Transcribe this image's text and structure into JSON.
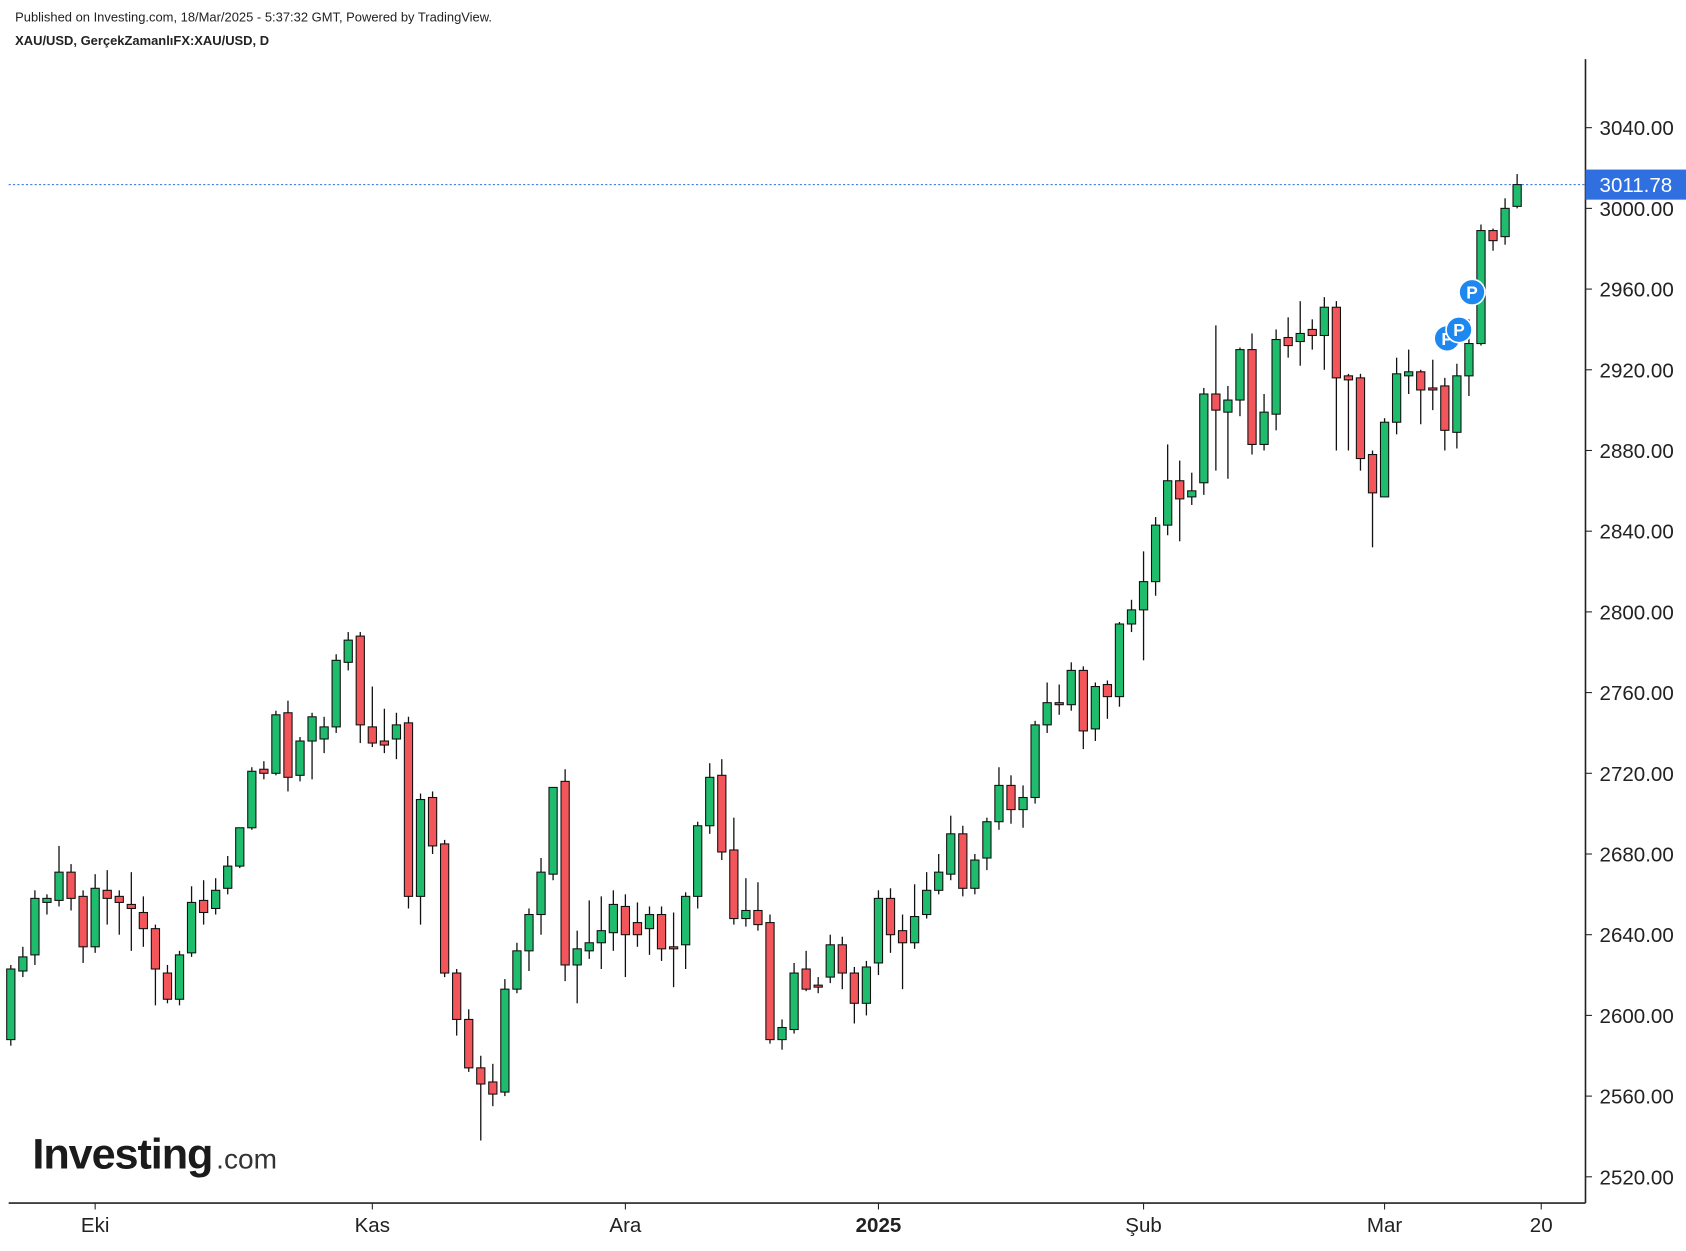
{
  "header": {
    "published": "Published on Investing.com, 18/Mar/2025 - 5:37:32 GMT, Powered by TradingView.",
    "symbol": "XAU/USD, GerçekZamanlıFX:XAU/USD, D"
  },
  "watermark": {
    "brand": "Investing",
    "suffix": ".com"
  },
  "chart_data": {
    "type": "candlestick",
    "categories": [
      null,
      null,
      null,
      null,
      null,
      null,
      null,
      "Eki",
      null,
      null,
      null,
      null,
      null,
      null,
      null,
      null,
      null,
      null,
      null,
      null,
      null,
      null,
      null,
      null,
      null,
      null,
      null,
      null,
      null,
      null,
      "Kas",
      null,
      null,
      null,
      null,
      null,
      null,
      null,
      null,
      null,
      null,
      null,
      null,
      null,
      null,
      null,
      null,
      null,
      null,
      null,
      null,
      "Ara",
      null,
      null,
      null,
      null,
      null,
      null,
      null,
      null,
      null,
      null,
      null,
      null,
      null,
      null,
      null,
      null,
      null,
      null,
      null,
      null,
      "2025",
      null,
      null,
      null,
      null,
      null,
      null,
      null,
      null,
      null,
      null,
      null,
      null,
      null,
      null,
      null,
      null,
      null,
      null,
      null,
      null,
      null,
      "Şub",
      null,
      null,
      null,
      null,
      null,
      null,
      null,
      null,
      null,
      null,
      null,
      null,
      null,
      null,
      null,
      null,
      null,
      null,
      null,
      "Mar",
      null,
      null,
      null,
      null,
      null,
      null,
      null,
      null,
      null,
      null,
      null,
      null,
      "20"
    ],
    "open": [
      2588,
      2622,
      2630,
      2656,
      2657,
      2671,
      2659,
      2634,
      2662,
      2659,
      2655,
      2651,
      2643,
      2621,
      2608,
      2631,
      2657,
      2653,
      2663,
      2674,
      2693,
      2722,
      2720,
      2750,
      2719,
      2736,
      2737,
      2743,
      2775,
      2788,
      2743,
      2736,
      2737,
      2745,
      2659,
      2708,
      2685,
      2621,
      2598,
      2574,
      2567,
      2562,
      2613,
      2632,
      2650,
      2670,
      2716,
      2625,
      2632,
      2636,
      2641,
      2654,
      2646,
      2643,
      2650,
      2634,
      2635,
      2659,
      2694,
      2719,
      2682,
      2648,
      2652,
      2646,
      2588,
      2593,
      2623,
      2615,
      2619,
      2635,
      2621,
      2606,
      2626,
      2658,
      2642,
      2636,
      2650,
      2662,
      2670,
      2690,
      2663,
      2678,
      2696,
      2714,
      2702,
      2708,
      2744,
      2755,
      2754,
      2771,
      2742,
      2764,
      2758,
      2794,
      2801,
      2815,
      2843,
      2865,
      2857,
      2864,
      2908,
      2899,
      2905,
      2930,
      2883,
      2898,
      2936,
      2934,
      2940,
      2937,
      2951,
      2917,
      2916,
      2878,
      2857,
      2894,
      2917,
      2919,
      2911,
      2912,
      2889,
      2917,
      2933,
      2989,
      2986,
      3001,
      null,
      null
    ],
    "high": [
      2625,
      2634,
      2662,
      2660,
      2684,
      2675,
      2662,
      2670,
      2672,
      2662,
      2671,
      2659,
      2645,
      2625,
      2632,
      2664,
      2667,
      2668,
      2679,
      2693,
      2723,
      2726,
      2751,
      2756,
      2738,
      2750,
      2748,
      2779,
      2790,
      2790,
      2763,
      2752,
      2750,
      2748,
      2710,
      2711,
      2687,
      2623,
      2603,
      2580,
      2576,
      2618,
      2636,
      2653,
      2678,
      2713,
      2722,
      2642,
      2657,
      2659,
      2662,
      2660,
      2656,
      2654,
      2654,
      2651,
      2661,
      2696,
      2725,
      2727,
      2698,
      2668,
      2666,
      2650,
      2598,
      2626,
      2632,
      2619,
      2640,
      2639,
      2624,
      2627,
      2662,
      2663,
      2650,
      2665,
      2671,
      2680,
      2699,
      2694,
      2680,
      2698,
      2723,
      2719,
      2714,
      2746,
      2765,
      2764,
      2775,
      2773,
      2765,
      2766,
      2795,
      2806,
      2830,
      2847,
      2883,
      2875,
      2869,
      2911,
      2942,
      2912,
      2931,
      2938,
      2908,
      2940,
      2946,
      2954,
      2945,
      2956,
      2954,
      2918,
      2918,
      2880,
      2896,
      2926,
      2930,
      2920,
      2925,
      2916,
      2923,
      2945,
      2992,
      2990,
      3005,
      3017,
      null,
      null
    ],
    "low": [
      2585,
      2619,
      2625,
      2650,
      2654,
      2652,
      2626,
      2631,
      2645,
      2640,
      2632,
      2634,
      2605,
      2606,
      2605,
      2629,
      2645,
      2650,
      2660,
      2673,
      2692,
      2717,
      2719,
      2711,
      2716,
      2717,
      2730,
      2740,
      2771,
      2735,
      2733,
      2730,
      2727,
      2653,
      2645,
      2680,
      2619,
      2590,
      2572,
      2538,
      2555,
      2560,
      2611,
      2622,
      2640,
      2667,
      2617,
      2606,
      2628,
      2623,
      2632,
      2619,
      2634,
      2630,
      2627,
      2614,
      2623,
      2653,
      2690,
      2677,
      2645,
      2644,
      2642,
      2586,
      2583,
      2591,
      2612,
      2611,
      2616,
      2613,
      2596,
      2600,
      2620,
      2631,
      2613,
      2633,
      2648,
      2660,
      2667,
      2659,
      2660,
      2672,
      2692,
      2695,
      2693,
      2705,
      2740,
      2749,
      2751,
      2732,
      2736,
      2747,
      2753,
      2790,
      2776,
      2808,
      2838,
      2835,
      2853,
      2858,
      2870,
      2866,
      2897,
      2878,
      2880,
      2890,
      2926,
      2922,
      2930,
      2920,
      2880,
      2880,
      2870,
      2832,
      2857,
      2888,
      2908,
      2893,
      2900,
      2880,
      2881,
      2907,
      2932,
      2979,
      2982,
      3000,
      null,
      null
    ],
    "close": [
      2623,
      2629,
      2658,
      2658,
      2671,
      2658,
      2634,
      2663,
      2658,
      2656,
      2653,
      2643,
      2623,
      2608,
      2630,
      2656,
      2651,
      2662,
      2674,
      2693,
      2721,
      2720,
      2749,
      2718,
      2736,
      2748,
      2743,
      2776,
      2786,
      2744,
      2735,
      2734,
      2744,
      2659,
      2707,
      2684,
      2621,
      2598,
      2574,
      2566,
      2561,
      2613,
      2632,
      2650,
      2671,
      2713,
      2625,
      2633,
      2636,
      2642,
      2655,
      2640,
      2640,
      2650,
      2633,
      2633,
      2659,
      2694,
      2718,
      2681,
      2648,
      2652,
      2645,
      2588,
      2594,
      2621,
      2613,
      2614,
      2635,
      2621,
      2606,
      2624,
      2658,
      2640,
      2636,
      2649,
      2662,
      2671,
      2690,
      2663,
      2677,
      2696,
      2714,
      2702,
      2708,
      2744,
      2755,
      2754,
      2771,
      2741,
      2763,
      2758,
      2794,
      2801,
      2815,
      2843,
      2865,
      2856,
      2860,
      2908,
      2900,
      2905,
      2930,
      2883,
      2899,
      2935,
      2932,
      2938,
      2937,
      2951,
      2916,
      2915,
      2876,
      2859,
      2894,
      2918,
      2919,
      2910,
      2910,
      2890,
      2917,
      2933,
      2989,
      2984,
      3000,
      3011.78,
      null,
      null
    ],
    "up_color": "#1fbc6e",
    "down_color": "#f2555a",
    "last_price": 3011.78,
    "last_price_color": "#2f6fe0",
    "event_markers": [
      "P",
      "P",
      "P"
    ],
    "ylim": [
      2507,
      3074
    ],
    "yticks": [
      {
        "value": 2520,
        "label": "2520.00"
      },
      {
        "value": 2560,
        "label": "2560.00"
      },
      {
        "value": 2600,
        "label": "2600.00"
      },
      {
        "value": 2640,
        "label": "2640.00"
      },
      {
        "value": 2680,
        "label": "2680.00"
      },
      {
        "value": 2720,
        "label": "2720.00"
      },
      {
        "value": 2760,
        "label": "2760.00"
      },
      {
        "value": 2800,
        "label": "2800.00"
      },
      {
        "value": 2840,
        "label": "2840.00"
      },
      {
        "value": 2880,
        "label": "2880.00"
      },
      {
        "value": 2920,
        "label": "2920.00"
      },
      {
        "value": 2960,
        "label": "2960.00"
      },
      {
        "value": 3000,
        "label": "3000.00"
      },
      {
        "value": 3040,
        "label": "3040.00"
      }
    ]
  }
}
